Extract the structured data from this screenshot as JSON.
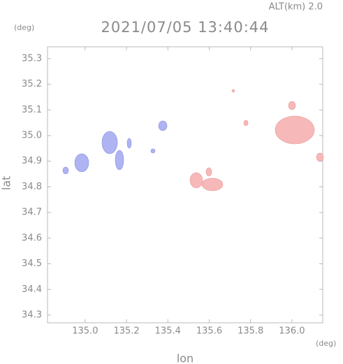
{
  "chart_data": {
    "type": "map",
    "title": "2021/07/05 13:40:44",
    "altitude_label": "ALT(km)  2.0",
    "y_unit": "(deg)",
    "x_unit": "(deg)",
    "xlabel": "lon",
    "ylabel": "lat",
    "xlim": [
      134.818,
      136.149
    ],
    "ylim": [
      34.27,
      35.346
    ],
    "xticks": [
      {
        "value": 135.0,
        "label": "135.0"
      },
      135.2,
      135.4,
      135.6,
      135.8,
      {
        "value": 136.0,
        "label": "136.0"
      }
    ],
    "yticks": [
      34.3,
      34.4,
      34.5,
      34.6,
      34.7,
      34.8,
      34.9,
      {
        "value": 35.0,
        "label": "35.0"
      },
      35.1,
      35.2,
      35.3
    ]
  }
}
